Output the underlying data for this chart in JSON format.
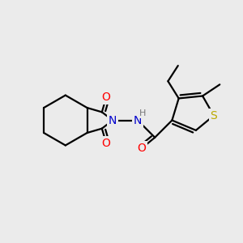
{
  "background_color": "#ebebeb",
  "atom_colors": {
    "C": "#000000",
    "N": "#0000cc",
    "O": "#ff0000",
    "S": "#bbaa00",
    "H": "#777777"
  },
  "bond_color": "#000000",
  "bond_width": 1.6,
  "font_size_atoms": 10
}
